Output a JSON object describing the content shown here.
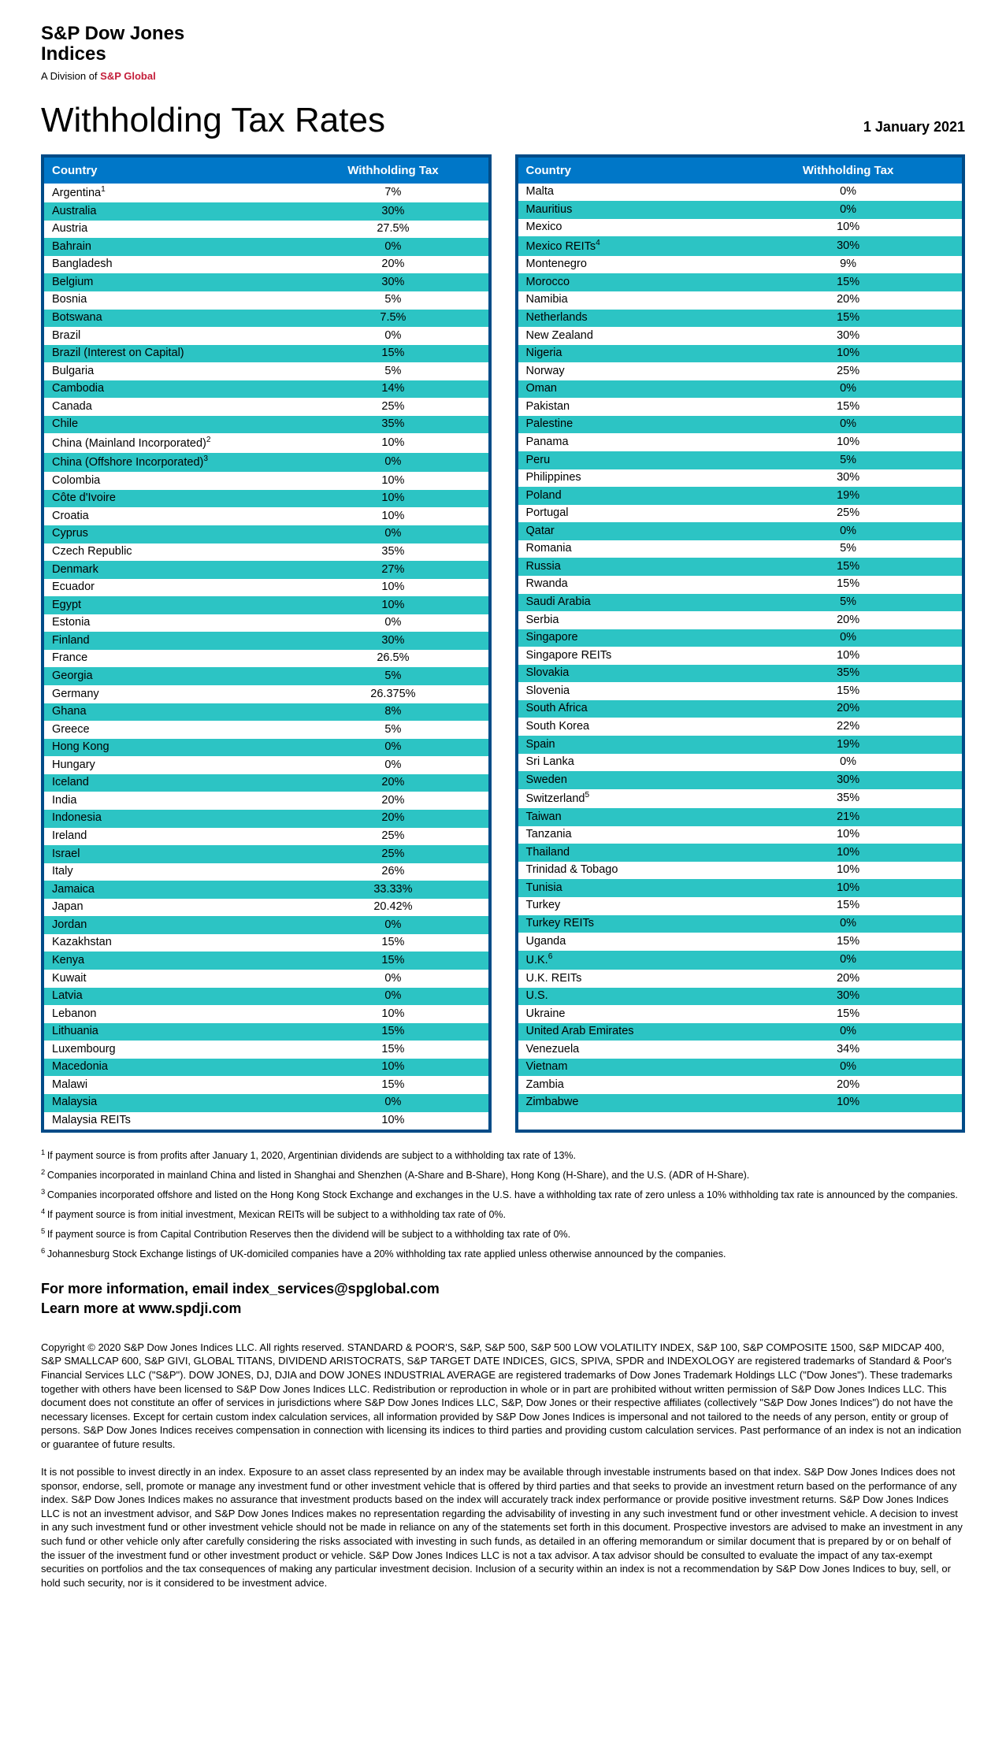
{
  "header": {
    "company_line1": "S&P Dow Jones",
    "company_line2": "Indices",
    "division_prefix": "A Division of ",
    "division_brand": "S&P Global"
  },
  "title": "Withholding Tax Rates",
  "date": "1 January 2021",
  "columns": {
    "country": "Country",
    "tax": "Withholding Tax"
  },
  "colors": {
    "header_border": "#004b87",
    "header_bg": "#0077c8",
    "row_alt": "#2cc4c4",
    "brand_red": "#c41e3a"
  },
  "table_left": [
    {
      "country": "Argentina",
      "sup": "1",
      "tax": "7%"
    },
    {
      "country": "Australia",
      "tax": "30%"
    },
    {
      "country": "Austria",
      "tax": "27.5%"
    },
    {
      "country": "Bahrain",
      "tax": "0%"
    },
    {
      "country": "Bangladesh",
      "tax": "20%"
    },
    {
      "country": "Belgium",
      "tax": "30%"
    },
    {
      "country": "Bosnia",
      "tax": "5%"
    },
    {
      "country": "Botswana",
      "tax": "7.5%"
    },
    {
      "country": "Brazil",
      "tax": "0%"
    },
    {
      "country": "Brazil (Interest on Capital)",
      "tax": "15%"
    },
    {
      "country": "Bulgaria",
      "tax": "5%"
    },
    {
      "country": "Cambodia",
      "tax": "14%"
    },
    {
      "country": "Canada",
      "tax": "25%"
    },
    {
      "country": "Chile",
      "tax": "35%"
    },
    {
      "country": "China (Mainland Incorporated)",
      "sup": "2",
      "tax": "10%"
    },
    {
      "country": "China (Offshore Incorporated)",
      "sup": "3",
      "tax": "0%"
    },
    {
      "country": "Colombia",
      "tax": "10%"
    },
    {
      "country": "Côte d'Ivoire",
      "tax": "10%"
    },
    {
      "country": "Croatia",
      "tax": "10%"
    },
    {
      "country": "Cyprus",
      "tax": "0%"
    },
    {
      "country": "Czech Republic",
      "tax": "35%"
    },
    {
      "country": "Denmark",
      "tax": "27%"
    },
    {
      "country": "Ecuador",
      "tax": "10%"
    },
    {
      "country": "Egypt",
      "tax": "10%"
    },
    {
      "country": "Estonia",
      "tax": "0%"
    },
    {
      "country": "Finland",
      "tax": "30%"
    },
    {
      "country": "France",
      "tax": "26.5%"
    },
    {
      "country": "Georgia",
      "tax": "5%"
    },
    {
      "country": "Germany",
      "tax": "26.375%"
    },
    {
      "country": "Ghana",
      "tax": "8%"
    },
    {
      "country": "Greece",
      "tax": "5%"
    },
    {
      "country": "Hong Kong",
      "tax": "0%"
    },
    {
      "country": "Hungary",
      "tax": "0%"
    },
    {
      "country": "Iceland",
      "tax": "20%"
    },
    {
      "country": "India",
      "tax": "20%"
    },
    {
      "country": "Indonesia",
      "tax": "20%"
    },
    {
      "country": "Ireland",
      "tax": "25%"
    },
    {
      "country": "Israel",
      "tax": "25%"
    },
    {
      "country": "Italy",
      "tax": "26%"
    },
    {
      "country": "Jamaica",
      "tax": "33.33%"
    },
    {
      "country": "Japan",
      "tax": "20.42%"
    },
    {
      "country": "Jordan",
      "tax": "0%"
    },
    {
      "country": "Kazakhstan",
      "tax": "15%"
    },
    {
      "country": "Kenya",
      "tax": "15%"
    },
    {
      "country": "Kuwait",
      "tax": "0%"
    },
    {
      "country": "Latvia",
      "tax": "0%"
    },
    {
      "country": "Lebanon",
      "tax": "10%"
    },
    {
      "country": "Lithuania",
      "tax": "15%"
    },
    {
      "country": "Luxembourg",
      "tax": "15%"
    },
    {
      "country": "Macedonia",
      "tax": "10%"
    },
    {
      "country": "Malawi",
      "tax": "15%"
    },
    {
      "country": "Malaysia",
      "tax": "0%"
    },
    {
      "country": "Malaysia REITs",
      "tax": "10%"
    }
  ],
  "table_right": [
    {
      "country": "Malta",
      "tax": "0%"
    },
    {
      "country": "Mauritius",
      "tax": "0%"
    },
    {
      "country": "Mexico",
      "tax": "10%"
    },
    {
      "country": "Mexico REITs",
      "sup": "4",
      "tax": "30%"
    },
    {
      "country": "Montenegro",
      "tax": "9%"
    },
    {
      "country": "Morocco",
      "tax": "15%"
    },
    {
      "country": "Namibia",
      "tax": "20%"
    },
    {
      "country": "Netherlands",
      "tax": "15%"
    },
    {
      "country": "New Zealand",
      "tax": "30%"
    },
    {
      "country": "Nigeria",
      "tax": "10%"
    },
    {
      "country": "Norway",
      "tax": "25%"
    },
    {
      "country": "Oman",
      "tax": "0%"
    },
    {
      "country": "Pakistan",
      "tax": "15%"
    },
    {
      "country": "Palestine",
      "tax": "0%"
    },
    {
      "country": "Panama",
      "tax": "10%"
    },
    {
      "country": "Peru",
      "tax": "5%"
    },
    {
      "country": "Philippines",
      "tax": "30%"
    },
    {
      "country": "Poland",
      "tax": "19%"
    },
    {
      "country": "Portugal",
      "tax": "25%"
    },
    {
      "country": "Qatar",
      "tax": "0%"
    },
    {
      "country": "Romania",
      "tax": "5%"
    },
    {
      "country": "Russia",
      "tax": "15%"
    },
    {
      "country": "Rwanda",
      "tax": "15%"
    },
    {
      "country": "Saudi Arabia",
      "tax": "5%"
    },
    {
      "country": "Serbia",
      "tax": "20%"
    },
    {
      "country": "Singapore",
      "tax": "0%"
    },
    {
      "country": "Singapore REITs",
      "tax": "10%"
    },
    {
      "country": "Slovakia",
      "tax": "35%"
    },
    {
      "country": "Slovenia",
      "tax": "15%"
    },
    {
      "country": "South Africa",
      "tax": "20%"
    },
    {
      "country": "South Korea",
      "tax": "22%"
    },
    {
      "country": "Spain",
      "tax": "19%"
    },
    {
      "country": "Sri Lanka",
      "tax": "0%"
    },
    {
      "country": "Sweden",
      "tax": "30%"
    },
    {
      "country": "Switzerland",
      "sup": "5",
      "tax": "35%"
    },
    {
      "country": "Taiwan",
      "tax": "21%"
    },
    {
      "country": "Tanzania",
      "tax": "10%"
    },
    {
      "country": "Thailand",
      "tax": "10%"
    },
    {
      "country": "Trinidad & Tobago",
      "tax": "10%"
    },
    {
      "country": "Tunisia",
      "tax": "10%"
    },
    {
      "country": "Turkey",
      "tax": "15%"
    },
    {
      "country": "Turkey REITs",
      "tax": "0%"
    },
    {
      "country": "Uganda",
      "tax": "15%"
    },
    {
      "country": "U.K.",
      "sup": "6",
      "tax": "0%"
    },
    {
      "country": "U.K. REITs",
      "tax": "20%"
    },
    {
      "country": "U.S.",
      "tax": "30%"
    },
    {
      "country": "Ukraine",
      "tax": "15%"
    },
    {
      "country": "United Arab Emirates",
      "tax": "0%"
    },
    {
      "country": "Venezuela",
      "tax": "34%"
    },
    {
      "country": "Vietnam",
      "tax": "0%"
    },
    {
      "country": "Zambia",
      "tax": "20%"
    },
    {
      "country": "Zimbabwe",
      "tax": "10%"
    },
    {
      "country": " ",
      "tax": " "
    }
  ],
  "footnotes": [
    {
      "n": "1",
      "text": "If payment source is from profits after January 1, 2020, Argentinian dividends are subject to a withholding tax rate of 13%."
    },
    {
      "n": "2",
      "text": "Companies incorporated in mainland China and listed in Shanghai and Shenzhen (A-Share and B-Share), Hong Kong (H-Share), and the U.S. (ADR of H-Share)."
    },
    {
      "n": "3",
      "text": "Companies incorporated offshore and listed on the Hong Kong Stock Exchange and exchanges in the U.S. have a withholding tax rate of zero unless a 10% withholding tax rate is announced by the companies."
    },
    {
      "n": "4",
      "text": "If payment source is from initial investment, Mexican REITs will be subject to a withholding tax rate of 0%."
    },
    {
      "n": "5",
      "text": "If payment source is from Capital Contribution Reserves then the dividend will be subject to a withholding tax rate of 0%."
    },
    {
      "n": "6",
      "text": "Johannesburg Stock Exchange listings of UK-domiciled companies have a 20% withholding tax rate applied unless otherwise announced by the companies."
    }
  ],
  "contact": {
    "line1": "For more information, email index_services@spglobal.com",
    "line2": "Learn more at www.spdji.com"
  },
  "legal": [
    "Copyright © 2020 S&P Dow Jones Indices LLC. All rights reserved. STANDARD & POOR'S, S&P, S&P 500, S&P 500 LOW VOLATILITY INDEX, S&P 100, S&P COMPOSITE 1500, S&P MIDCAP 400, S&P SMALLCAP 600, S&P GIVI, GLOBAL TITANS, DIVIDEND ARISTOCRATS, S&P TARGET DATE INDICES, GICS, SPIVA, SPDR and INDEXOLOGY are registered trademarks of Standard & Poor's Financial Services LLC (\"S&P\"). DOW JONES, DJ, DJIA and DOW JONES INDUSTRIAL AVERAGE are registered trademarks of Dow Jones Trademark Holdings LLC (\"Dow Jones\"). These trademarks together with others have been licensed to S&P Dow Jones Indices LLC. Redistribution or reproduction in whole or in part are prohibited without written permission of S&P Dow Jones Indices LLC. This document does not constitute an offer of services in jurisdictions where S&P Dow Jones Indices LLC, S&P, Dow Jones or their respective affiliates (collectively \"S&P Dow Jones Indices\") do not have the necessary licenses. Except for certain custom index calculation services, all information provided by S&P Dow Jones Indices is impersonal and not tailored to the needs of any person, entity or group of persons. S&P Dow Jones Indices receives compensation in connection with licensing its indices to third parties and providing custom calculation services. Past performance of an index is not an indication or guarantee of future results.",
    "It is not possible to invest directly in an index. Exposure to an asset class represented by an index may be available through investable instruments based on that index. S&P Dow Jones Indices does not sponsor, endorse, sell, promote or manage any investment fund or other investment vehicle that is offered by third parties and that seeks to provide an investment return based on the performance of any index. S&P Dow Jones Indices makes no assurance that investment products based on the index will accurately track index performance or provide positive investment returns. S&P Dow Jones Indices LLC is not an investment advisor, and S&P Dow Jones Indices makes no representation regarding the advisability of investing in any such investment fund or other investment vehicle. A decision to invest in any such investment fund or other investment vehicle should not be made in reliance on any of the statements set forth in this document. Prospective investors are advised to make an investment in any such fund or other vehicle only after carefully considering the risks associated with investing in such funds, as detailed in an offering memorandum or similar document that is prepared by or on behalf of the issuer of the investment fund or other investment product or vehicle. S&P Dow Jones Indices LLC is not a tax advisor. A tax advisor should be consulted to evaluate the impact of any tax-exempt securities on portfolios and the tax consequences of making any particular investment decision. Inclusion of a security within an index is not a recommendation by S&P Dow Jones Indices to buy, sell, or hold such security, nor is it considered to be investment advice."
  ]
}
